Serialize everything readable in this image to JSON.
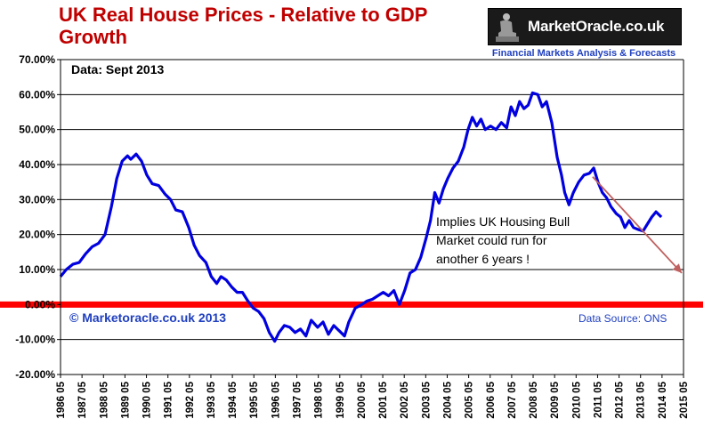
{
  "header": {
    "title": "UK Real House Prices - Relative to GDP Growth",
    "logo_text": "MarketOracle.co.uk",
    "tagline": "Financial Markets Analysis & Forecasts"
  },
  "colors": {
    "title": "#c00000",
    "series": "#0000e0",
    "zero_line": "#ff0000",
    "arrow": "#c06060",
    "source_text": "#1f3fbf"
  },
  "chart_data": {
    "type": "line",
    "title": "UK Real House Prices - Relative to GDP Growth",
    "xlabel": "",
    "ylabel": "",
    "ylim": [
      -20,
      70
    ],
    "xlim": [
      1986.33,
      2015.33
    ],
    "grid": "horizontal",
    "y_ticks": [
      "70.00%",
      "60.00%",
      "50.00%",
      "40.00%",
      "30.00%",
      "20.00%",
      "10.00%",
      "0.00%",
      "-10.00%",
      "-20.00%"
    ],
    "x_ticks": [
      "1986 05",
      "1987 05",
      "1988 05",
      "1989 05",
      "1990 05",
      "1991 05",
      "1992 05",
      "1993 05",
      "1994 05",
      "1995 05",
      "1996 05",
      "1997 05",
      "1998 05",
      "1999 05",
      "2000 05",
      "2001 05",
      "2002 05",
      "2003 05",
      "2004 05",
      "2005 05",
      "2006 05",
      "2007 05",
      "2008 05",
      "2009 05",
      "2010 05",
      "2011 05",
      "2012 05",
      "2013 05",
      "2014 05",
      "2015 05"
    ],
    "series": [
      {
        "values": [
          [
            1986.33,
            8
          ],
          [
            1986.6,
            10
          ],
          [
            1986.9,
            11.5
          ],
          [
            1987.2,
            12
          ],
          [
            1987.5,
            14.5
          ],
          [
            1987.8,
            16.5
          ],
          [
            1988.1,
            17.5
          ],
          [
            1988.4,
            20
          ],
          [
            1988.7,
            28
          ],
          [
            1988.95,
            36
          ],
          [
            1989.2,
            41
          ],
          [
            1989.45,
            42.5
          ],
          [
            1989.6,
            41.5
          ],
          [
            1989.85,
            43
          ],
          [
            1990.1,
            41
          ],
          [
            1990.35,
            37
          ],
          [
            1990.6,
            34.5
          ],
          [
            1990.9,
            34
          ],
          [
            1991.2,
            31.5
          ],
          [
            1991.45,
            30
          ],
          [
            1991.7,
            27
          ],
          [
            1992.0,
            26.5
          ],
          [
            1992.3,
            22
          ],
          [
            1992.55,
            17
          ],
          [
            1992.8,
            14
          ],
          [
            1993.1,
            12
          ],
          [
            1993.35,
            8
          ],
          [
            1993.6,
            6
          ],
          [
            1993.8,
            8
          ],
          [
            1994.05,
            7
          ],
          [
            1994.3,
            5
          ],
          [
            1994.55,
            3.5
          ],
          [
            1994.8,
            3.5
          ],
          [
            1995.05,
            1
          ],
          [
            1995.3,
            -1
          ],
          [
            1995.55,
            -2
          ],
          [
            1995.8,
            -4
          ],
          [
            1996.05,
            -8
          ],
          [
            1996.3,
            -10.5
          ],
          [
            1996.5,
            -8
          ],
          [
            1996.75,
            -6
          ],
          [
            1997.0,
            -6.5
          ],
          [
            1997.25,
            -8
          ],
          [
            1997.5,
            -7
          ],
          [
            1997.75,
            -9
          ],
          [
            1998.0,
            -4.5
          ],
          [
            1998.3,
            -6.5
          ],
          [
            1998.55,
            -5
          ],
          [
            1998.8,
            -8.5
          ],
          [
            1999.05,
            -6
          ],
          [
            1999.3,
            -7.5
          ],
          [
            1999.55,
            -9
          ],
          [
            1999.75,
            -5
          ],
          [
            2000.05,
            -1
          ],
          [
            2000.35,
            0
          ],
          [
            2000.6,
            1
          ],
          [
            2000.85,
            1.5
          ],
          [
            2001.1,
            2.5
          ],
          [
            2001.35,
            3.5
          ],
          [
            2001.6,
            2.5
          ],
          [
            2001.85,
            4
          ],
          [
            2002.1,
            0
          ],
          [
            2002.35,
            4
          ],
          [
            2002.6,
            9
          ],
          [
            2002.85,
            10
          ],
          [
            2003.1,
            13.5
          ],
          [
            2003.35,
            19
          ],
          [
            2003.55,
            24
          ],
          [
            2003.75,
            32
          ],
          [
            2003.95,
            29
          ],
          [
            2004.15,
            33
          ],
          [
            2004.35,
            36
          ],
          [
            2004.6,
            39
          ],
          [
            2004.85,
            41
          ],
          [
            2005.1,
            45
          ],
          [
            2005.3,
            50
          ],
          [
            2005.5,
            53.5
          ],
          [
            2005.7,
            51
          ],
          [
            2005.9,
            53
          ],
          [
            2006.1,
            50
          ],
          [
            2006.35,
            51
          ],
          [
            2006.6,
            50
          ],
          [
            2006.85,
            52
          ],
          [
            2007.1,
            50.5
          ],
          [
            2007.3,
            56.5
          ],
          [
            2007.5,
            54
          ],
          [
            2007.7,
            58
          ],
          [
            2007.9,
            56
          ],
          [
            2008.1,
            57
          ],
          [
            2008.3,
            60.5
          ],
          [
            2008.55,
            60
          ],
          [
            2008.75,
            56.5
          ],
          [
            2008.95,
            58
          ],
          [
            2009.2,
            52
          ],
          [
            2009.45,
            42
          ],
          [
            2009.65,
            37
          ],
          [
            2009.8,
            32
          ],
          [
            2010.0,
            28.5
          ],
          [
            2010.2,
            32
          ],
          [
            2010.45,
            35
          ],
          [
            2010.7,
            37
          ],
          [
            2010.95,
            37.5
          ],
          [
            2011.15,
            39
          ],
          [
            2011.35,
            35
          ],
          [
            2011.55,
            32
          ],
          [
            2011.75,
            30.5
          ],
          [
            2011.95,
            28
          ],
          [
            2012.2,
            26
          ],
          [
            2012.4,
            25
          ],
          [
            2012.6,
            22
          ],
          [
            2012.8,
            24
          ],
          [
            2013.0,
            22
          ],
          [
            2013.2,
            21.5
          ],
          [
            2013.45,
            21
          ],
          [
            2013.65,
            23
          ],
          [
            2013.85,
            25
          ],
          [
            2014.05,
            26.5
          ],
          [
            2014.3,
            25
          ]
        ]
      }
    ],
    "annotations": [
      {
        "text": "Data:  Sept 2013"
      },
      {
        "text": "Implies UK Housing Bull Market could run for another 6 years !",
        "lines": [
          "Implies UK Housing Bull",
          "Market could run for",
          "another 6 years !"
        ]
      },
      {
        "text": "© Marketoracle.co.uk  2013"
      },
      {
        "text": "Data Source:  ONS"
      }
    ],
    "trend_arrow": {
      "from": [
        2011.1,
        36.5
      ],
      "to": [
        2015.33,
        9
      ]
    }
  }
}
